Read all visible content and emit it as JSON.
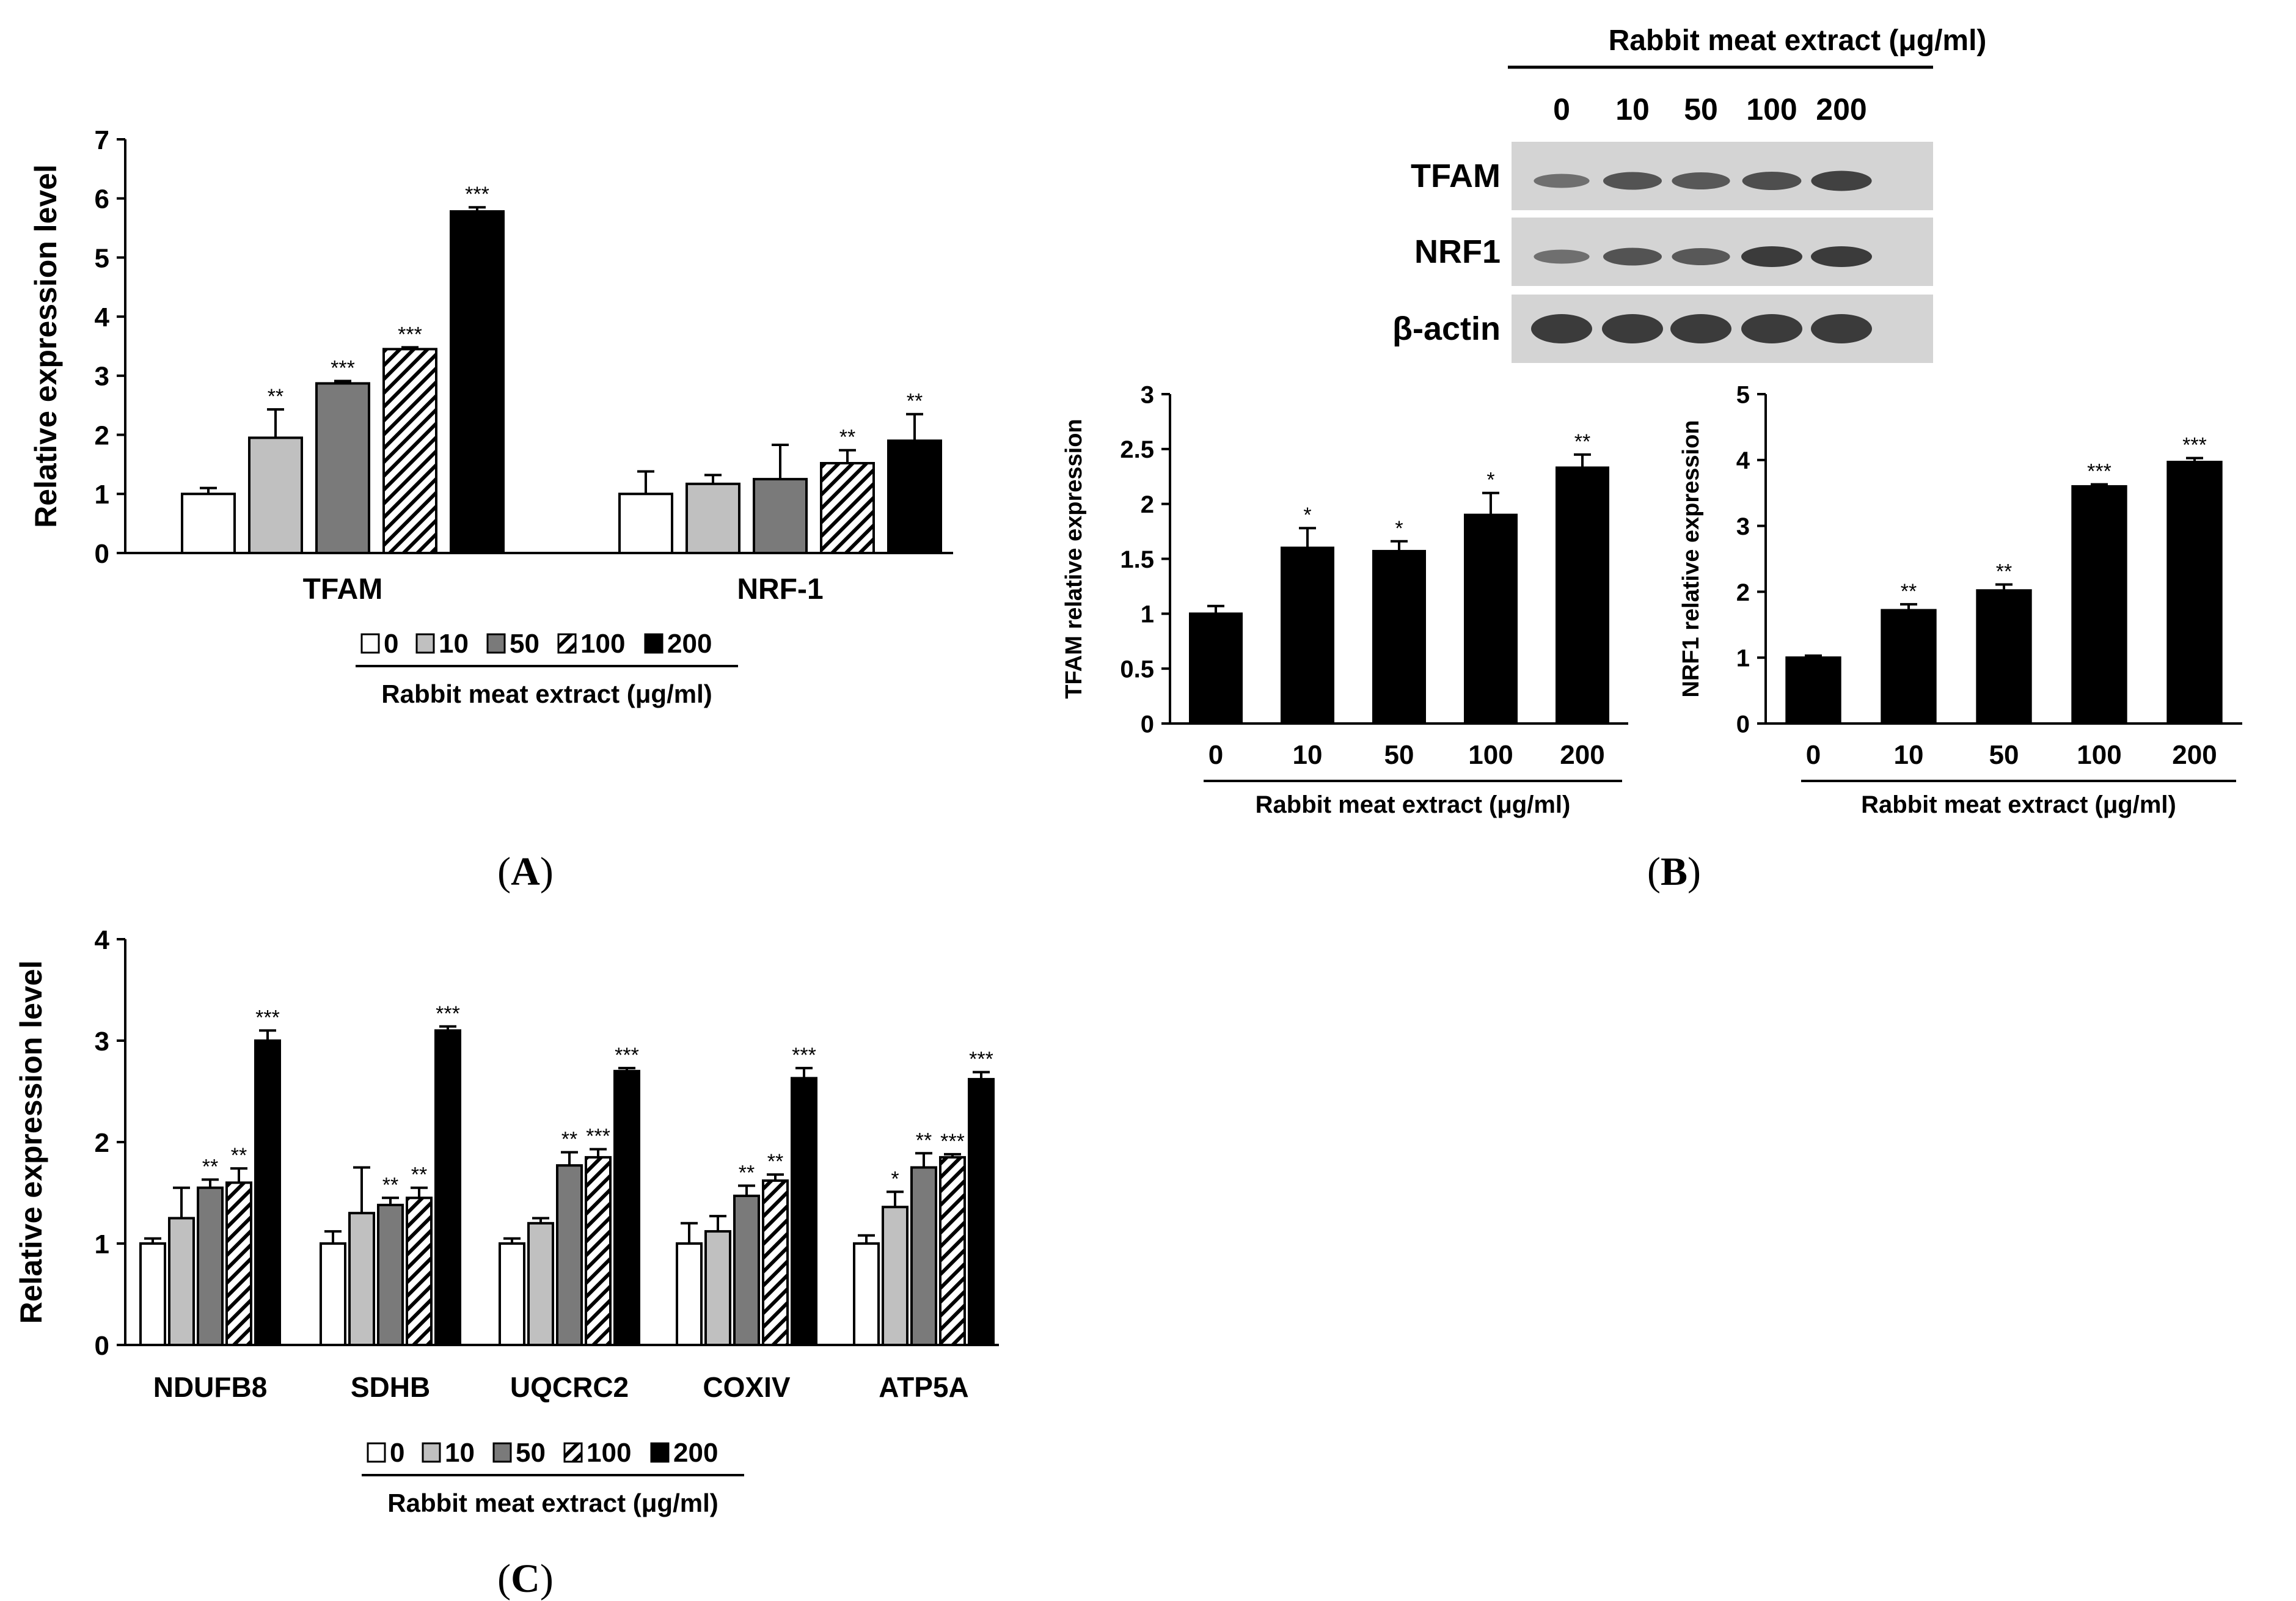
{
  "panel_labels": {
    "A": "A",
    "B": "B",
    "C": "C"
  },
  "blot": {
    "header": "Rabbit meat extract (μg/ml)",
    "lanes": [
      "0",
      "10",
      "50",
      "100",
      "200"
    ],
    "rows": [
      "TFAM",
      "NRF1",
      "β-actin"
    ],
    "band_intensity": {
      "TFAM": [
        0.45,
        0.75,
        0.7,
        0.8,
        0.95
      ],
      "NRF1": [
        0.45,
        0.75,
        0.7,
        1.0,
        1.0
      ],
      "β-actin": [
        1.0,
        1.0,
        1.0,
        1.0,
        1.0
      ]
    }
  },
  "colors": {
    "c0": "#ffffff",
    "c10": "#c0c0c0",
    "c50": "#7a7a7a",
    "c200": "#000000",
    "axis": "#000000",
    "blot_bg": "#d4d4d4",
    "band": "#2a2a2a"
  },
  "chart_data": [
    {
      "id": "A",
      "type": "bar",
      "categories": [
        "TFAM",
        "NRF-1"
      ],
      "series": [
        {
          "name": "0",
          "values": [
            1.0,
            1.0
          ],
          "errors": [
            0.1,
            0.38
          ],
          "sig": [
            "",
            ""
          ]
        },
        {
          "name": "10",
          "values": [
            1.95,
            1.17
          ],
          "errors": [
            0.48,
            0.15
          ],
          "sig": [
            "**",
            ""
          ]
        },
        {
          "name": "50",
          "values": [
            2.87,
            1.25
          ],
          "errors": [
            0.04,
            0.58
          ],
          "sig": [
            "***",
            ""
          ]
        },
        {
          "name": "100",
          "values": [
            3.45,
            1.52
          ],
          "errors": [
            0.03,
            0.22
          ],
          "sig": [
            "***",
            "**"
          ]
        },
        {
          "name": "200",
          "values": [
            5.78,
            1.9
          ],
          "errors": [
            0.07,
            0.45
          ],
          "sig": [
            "***",
            "**"
          ]
        }
      ],
      "ylabel": "Relative expression level",
      "ylim": [
        0,
        7
      ],
      "yticks": [
        "0",
        "1",
        "2",
        "3",
        "4",
        "5",
        "6",
        "7"
      ],
      "legend_title": "Rabbit meat extract (μg/ml)"
    },
    {
      "id": "B1",
      "type": "bar",
      "categories": [
        "0",
        "10",
        "50",
        "100",
        "200"
      ],
      "values": [
        1.0,
        1.6,
        1.57,
        1.9,
        2.33
      ],
      "errors": [
        0.07,
        0.18,
        0.09,
        0.2,
        0.12
      ],
      "sig": [
        "",
        "*",
        "*",
        "*",
        "**"
      ],
      "ylabel": "TFAM relative expression",
      "xlabel": "Rabbit meat extract (μg/ml)",
      "ylim": [
        0,
        3
      ],
      "yticks": [
        "0",
        "0.5",
        "1",
        "1.5",
        "2",
        "2.5",
        "3"
      ]
    },
    {
      "id": "B2",
      "type": "bar",
      "categories": [
        "0",
        "10",
        "50",
        "100",
        "200"
      ],
      "values": [
        1.0,
        1.72,
        2.02,
        3.6,
        3.97
      ],
      "errors": [
        0.03,
        0.09,
        0.09,
        0.03,
        0.06
      ],
      "sig": [
        "",
        "**",
        "**",
        "***",
        "***"
      ],
      "ylabel": "NRF1 relative expression",
      "xlabel": "Rabbit meat extract (μg/ml)",
      "ylim": [
        0,
        5
      ],
      "yticks": [
        "0",
        "1",
        "2",
        "3",
        "4",
        "5"
      ]
    },
    {
      "id": "C",
      "type": "bar",
      "categories": [
        "NDUFB8",
        "SDHB",
        "UQCRC2",
        "COXIV",
        "ATP5A"
      ],
      "series": [
        {
          "name": "0",
          "values": [
            1.0,
            1.0,
            1.0,
            1.0,
            1.0
          ],
          "errors": [
            0.05,
            0.12,
            0.05,
            0.2,
            0.08
          ],
          "sig": [
            "",
            "",
            "",
            "",
            ""
          ]
        },
        {
          "name": "10",
          "values": [
            1.25,
            1.3,
            1.2,
            1.12,
            1.36
          ],
          "errors": [
            0.3,
            0.45,
            0.05,
            0.15,
            0.15
          ],
          "sig": [
            "",
            "",
            "",
            "",
            "*"
          ]
        },
        {
          "name": "50",
          "values": [
            1.55,
            1.38,
            1.77,
            1.47,
            1.75
          ],
          "errors": [
            0.08,
            0.07,
            0.13,
            0.1,
            0.14
          ],
          "sig": [
            "**",
            "**",
            "**",
            "**",
            "**"
          ]
        },
        {
          "name": "100",
          "values": [
            1.6,
            1.45,
            1.85,
            1.62,
            1.85
          ],
          "errors": [
            0.14,
            0.1,
            0.08,
            0.06,
            0.03
          ],
          "sig": [
            "**",
            "**",
            "***",
            "**",
            "***"
          ]
        },
        {
          "name": "200",
          "values": [
            3.0,
            3.1,
            2.7,
            2.63,
            2.62
          ],
          "errors": [
            0.1,
            0.04,
            0.03,
            0.1,
            0.07
          ],
          "sig": [
            "***",
            "***",
            "***",
            "***",
            "***"
          ]
        }
      ],
      "ylabel": "Relative expression level",
      "ylim": [
        0,
        4
      ],
      "yticks": [
        "0",
        "1",
        "2",
        "3",
        "4"
      ],
      "legend_title": "Rabbit meat extract (μg/ml)"
    }
  ]
}
